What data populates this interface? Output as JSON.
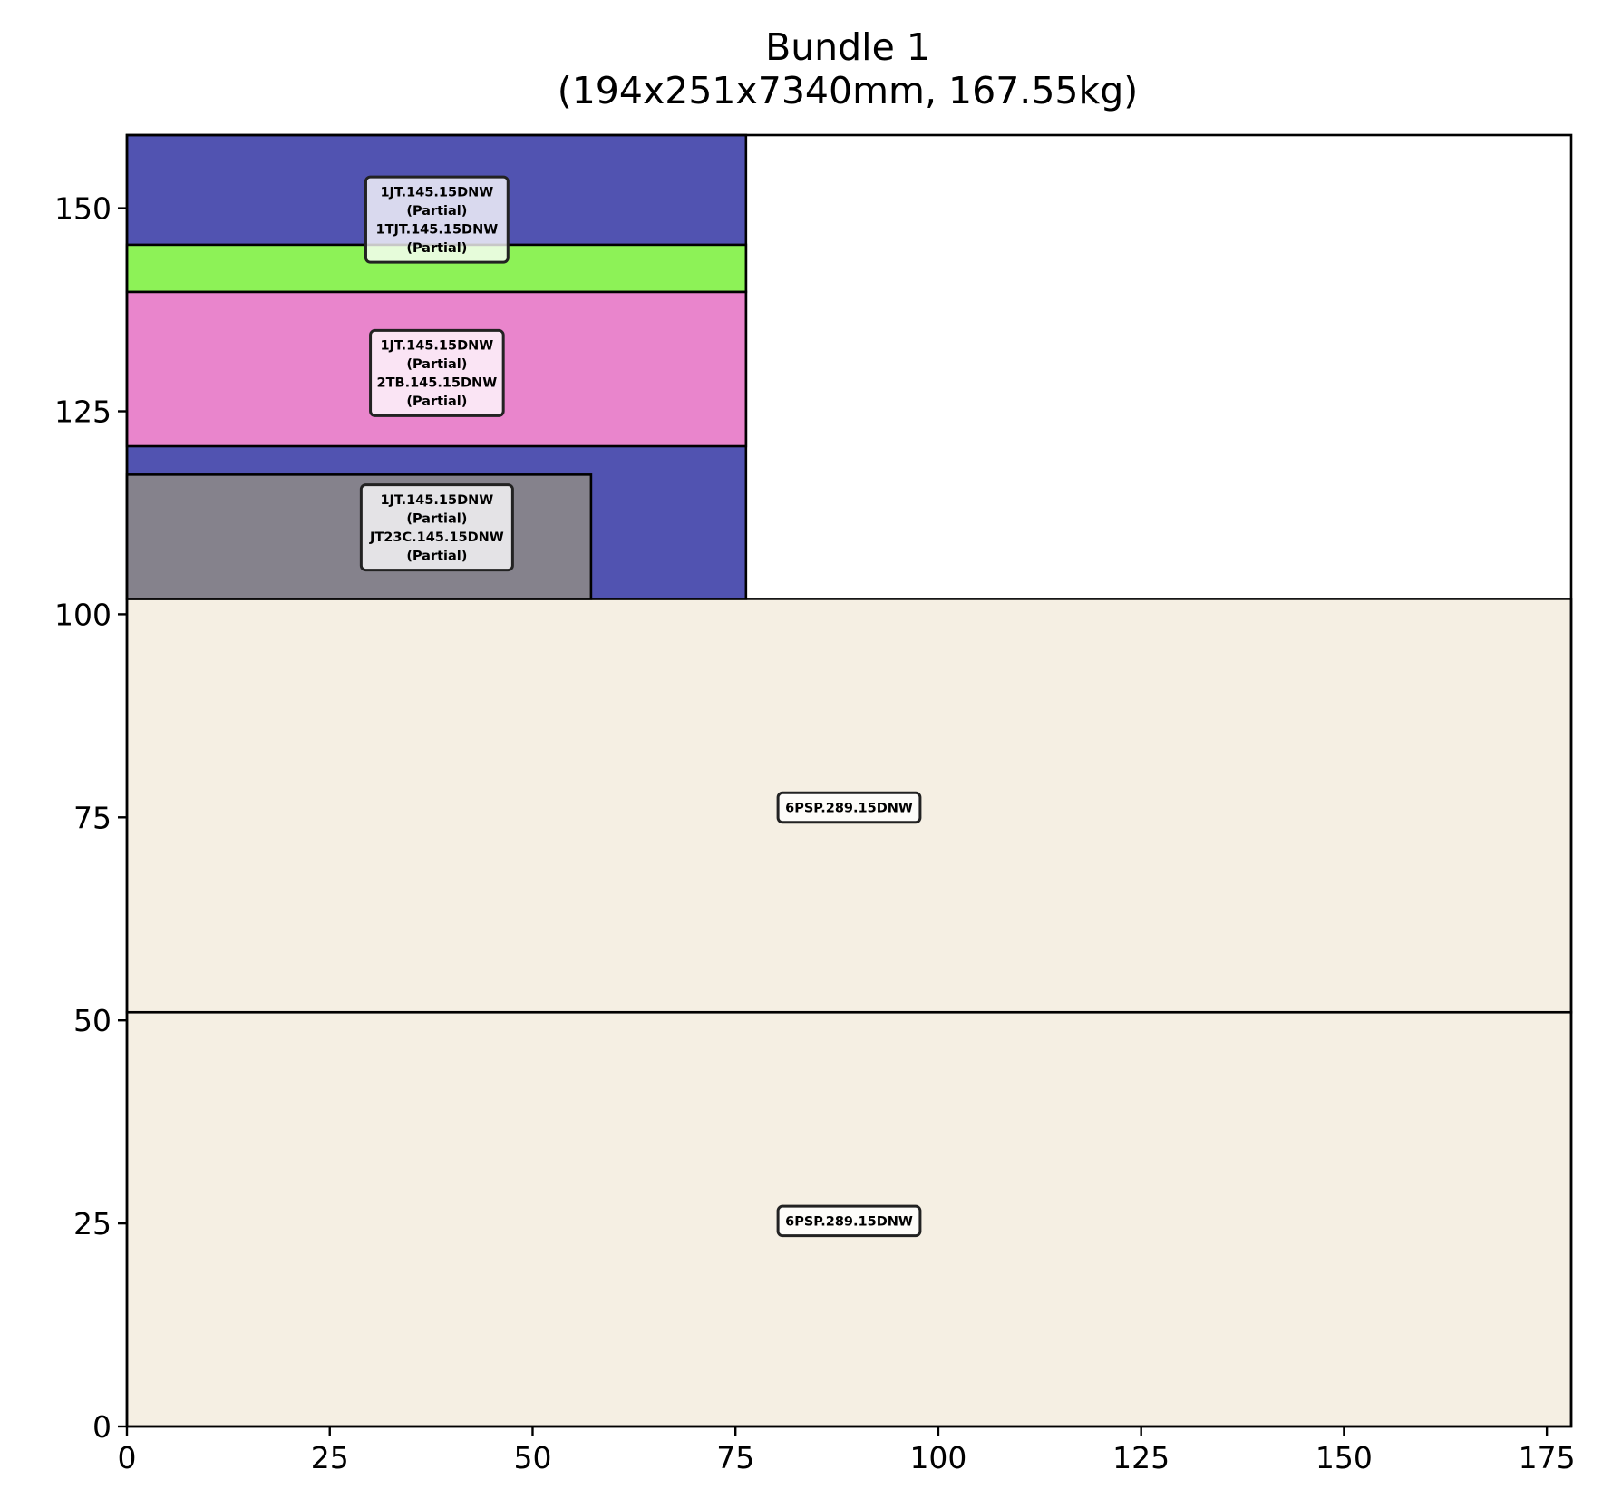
{
  "chart_data": {
    "type": "rectangle-packing",
    "title_lines": [
      "Bundle 1",
      "(194x251x7340mm, 167.55kg)"
    ],
    "xlim": [
      0,
      178
    ],
    "ylim": [
      0,
      159
    ],
    "xticks": [
      0,
      25,
      50,
      75,
      100,
      125,
      150,
      175
    ],
    "yticks": [
      0,
      25,
      50,
      75,
      100,
      125,
      150
    ],
    "grid": false,
    "rectangles": [
      {
        "x": 0,
        "y": 0,
        "w": 178,
        "h": 51,
        "color": "#f5efe3"
      },
      {
        "x": 0,
        "y": 51,
        "w": 178,
        "h": 50.9,
        "color": "#f5efe3"
      },
      {
        "x": 0,
        "y": 101.9,
        "w": 76.3,
        "h": 57.1,
        "color": "#5153b1"
      },
      {
        "x": 0,
        "y": 101.9,
        "w": 57.2,
        "h": 15.3,
        "color": "#85828c"
      },
      {
        "x": 0,
        "y": 120.7,
        "w": 76.3,
        "h": 19,
        "color": "#e985cc"
      },
      {
        "x": 0,
        "y": 139.7,
        "w": 76.3,
        "h": 5.8,
        "color": "#8df257"
      }
    ],
    "labels": [
      {
        "cx": 89,
        "cy": 25.3,
        "lines": [
          "6PSP.289.15DNW"
        ]
      },
      {
        "cx": 89,
        "cy": 76.2,
        "lines": [
          "6PSP.289.15DNW"
        ]
      },
      {
        "cx": 38.2,
        "cy": 110.7,
        "lines": [
          "1JT.145.15DNW",
          "(Partial)",
          "JT23C.145.15DNW",
          "(Partial)"
        ]
      },
      {
        "cx": 38.2,
        "cy": 129.7,
        "lines": [
          "1JT.145.15DNW",
          "(Partial)",
          "2TB.145.15DNW",
          "(Partial)"
        ]
      },
      {
        "cx": 38.2,
        "cy": 148.6,
        "lines": [
          "1JT.145.15DNW",
          "(Partial)",
          "1TJT.145.15DNW",
          "(Partial)"
        ]
      }
    ]
  }
}
